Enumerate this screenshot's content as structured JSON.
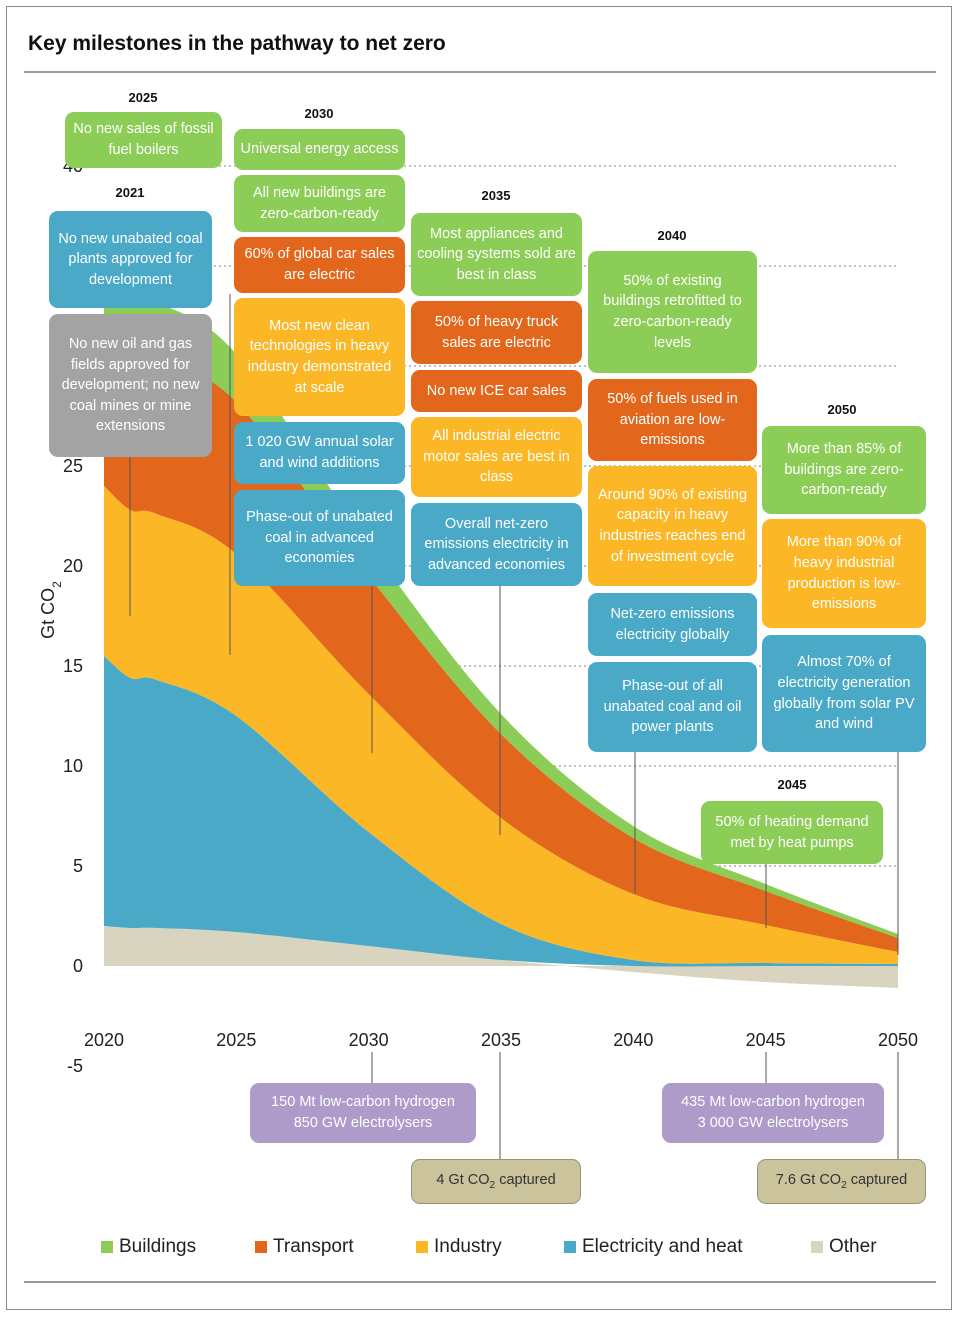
{
  "title": "Key milestones in the pathway to net zero",
  "colors": {
    "buildings": "#8ccd57",
    "transport": "#e2661c",
    "industry": "#fbb726",
    "electricity": "#49a9c7",
    "other": "#d9d4c0",
    "grey": "#a3a3a3",
    "purple": "#ae9bca",
    "tan": "#cbc39c"
  },
  "chart_data": {
    "type": "area",
    "stacked": true,
    "ylabel": "Gt CO2",
    "ylim": [
      -5,
      40
    ],
    "yticks": [
      -5,
      0,
      5,
      10,
      15,
      20,
      25,
      30,
      35,
      40
    ],
    "xlim": [
      2020,
      2050
    ],
    "xticks": [
      2020,
      2025,
      2030,
      2035,
      2040,
      2045,
      2050
    ],
    "grid": "dotted horizontal lines above the chart area",
    "x": [
      2020,
      2021,
      2022,
      2025,
      2030,
      2035,
      2040,
      2045,
      2050
    ],
    "series": [
      {
        "name": "Other",
        "color": "#d9d4c0",
        "values": [
          2.0,
          1.9,
          1.9,
          1.7,
          1.0,
          0.3,
          -0.3,
          -0.8,
          -1.1
        ]
      },
      {
        "name": "Electricity and heat",
        "color": "#49a9c7",
        "values": [
          13.5,
          12.5,
          12.4,
          10.8,
          5.7,
          1.8,
          0.3,
          0.15,
          0.1
        ]
      },
      {
        "name": "Industry",
        "color": "#fbb726",
        "values": [
          8.5,
          8.4,
          8.3,
          8.1,
          6.9,
          5.3,
          3.3,
          1.9,
          0.6
        ]
      },
      {
        "name": "Transport",
        "color": "#e2661c",
        "values": [
          7.0,
          7.9,
          7.7,
          7.6,
          5.9,
          4.2,
          2.8,
          1.7,
          0.7
        ]
      },
      {
        "name": "Buildings",
        "color": "#8ccd57",
        "values": [
          3.0,
          3.0,
          2.9,
          2.4,
          1.6,
          1.0,
          0.6,
          0.35,
          0.2
        ]
      }
    ],
    "legend": [
      "Buildings",
      "Transport",
      "Industry",
      "Electricity and heat",
      "Other"
    ],
    "legend_placement": "bottom"
  },
  "years": {
    "y2021": "2021",
    "y2025": "2025",
    "y2030": "2030",
    "y2035": "2035",
    "y2040": "2040",
    "y2045": "2045",
    "y2050": "2050"
  },
  "milestones": {
    "m2025_boilers": "No new sales of fossil fuel boilers",
    "m2021_coal": "No new unabated coal plants approved for development",
    "m2021_oilgas": "No new oil and gas fields approved for development; no new coal mines or mine extensions",
    "m2030_access": "Universal energy access",
    "m2030_buildings": "All new buildings are zero-carbon-ready",
    "m2030_cars": "60% of global car sales are electric",
    "m2030_industry": "Most new clean technologies in heavy industry demonstrated at scale",
    "m2030_solar": "1 020 GW annual solar and wind additions",
    "m2030_coal": "Phase-out of unabated coal in advanced economies",
    "m2035_appliances": "Most appliances and cooling systems sold are best in class",
    "m2035_trucks": "50% of heavy truck sales are electric",
    "m2035_ice": "No new ICE car sales",
    "m2035_motors": "All industrial electric motor sales are best in class",
    "m2035_electricity": "Overall net-zero emissions electricity in advanced economies",
    "m2040_retrofit": "50% of existing buildings retrofitted to zero-carbon-ready levels",
    "m2040_aviation": "50% of fuels used in aviation are low-emissions",
    "m2040_heavy": "Around 90% of existing capacity in heavy industries reaches end of investment cycle",
    "m2040_netzero": "Net-zero emissions electricity globally",
    "m2040_coaloil": "Phase-out of all unabated coal and oil power plants",
    "m2050_buildings": "More than 85% of buildings are zero-carbon-ready",
    "m2050_industry": "More than 90% of heavy industrial production is low-emissions",
    "m2050_solar": "Almost 70% of electricity generation globally from solar PV and wind",
    "m2045_heat": "50% of heating demand met by heat pumps",
    "m2030_hydrogen_l1": "150 Mt low-carbon hydrogen",
    "m2030_hydrogen_l2": "850 GW electrolysers",
    "m2045_hydrogen_l1": "435 Mt low-carbon hydrogen",
    "m2045_hydrogen_l2": "3 000 GW electrolysers",
    "m2035_ccus_pre": "4 Gt CO",
    "m2035_ccus_post": " captured",
    "m2050_ccus_pre": "7.6 Gt CO",
    "m2050_ccus_post": " captured",
    "co2_subscript": "2"
  }
}
